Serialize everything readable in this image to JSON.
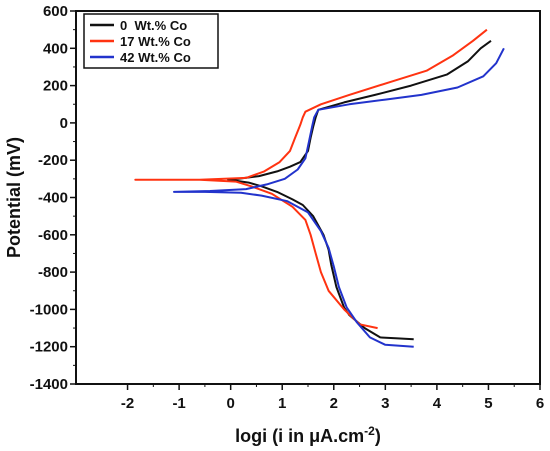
{
  "chart_data": {
    "type": "line",
    "xlabel_main": "logi (i in μA.cm",
    "xlabel_sup": "-2",
    "xlabel_close": ")",
    "ylabel": "Potential (mV)",
    "xlim": [
      -3,
      6
    ],
    "ylim": [
      -1400,
      600
    ],
    "xticks": [
      "-2",
      "-1",
      "0",
      "1",
      "2",
      "3",
      "4",
      "5",
      "6"
    ],
    "yticks": [
      "-1400",
      "-1200",
      "-1000",
      "-800",
      "-600",
      "-400",
      "-200",
      "0",
      "200",
      "400",
      "600"
    ],
    "legend_position": "top-left",
    "series": [
      {
        "name": "0  Wt.% Co",
        "color": "#111111",
        "points": [
          [
            3.55,
            -1160
          ],
          [
            3.2,
            -1155
          ],
          [
            2.9,
            -1150
          ],
          [
            2.6,
            -1100
          ],
          [
            2.3,
            -1030
          ],
          [
            2.2,
            -990
          ],
          [
            2.05,
            -880
          ],
          [
            1.95,
            -760
          ],
          [
            1.9,
            -680
          ],
          [
            1.8,
            -600
          ],
          [
            1.6,
            -500
          ],
          [
            1.4,
            -440
          ],
          [
            1.2,
            -410
          ],
          [
            0.9,
            -370
          ],
          [
            0.6,
            -340
          ],
          [
            0.35,
            -320
          ],
          [
            0.1,
            -310
          ],
          [
            -0.05,
            -305
          ],
          [
            0.15,
            -300
          ],
          [
            0.55,
            -285
          ],
          [
            0.9,
            -260
          ],
          [
            1.15,
            -235
          ],
          [
            1.35,
            -210
          ],
          [
            1.5,
            -150
          ],
          [
            1.55,
            -80
          ],
          [
            1.6,
            -20
          ],
          [
            1.65,
            30
          ],
          [
            1.7,
            70
          ],
          [
            2.2,
            110
          ],
          [
            2.8,
            150
          ],
          [
            3.5,
            200
          ],
          [
            4.2,
            260
          ],
          [
            4.6,
            330
          ],
          [
            4.85,
            400
          ],
          [
            5.05,
            440
          ]
        ]
      },
      {
        "name": "17 Wt.% Co",
        "color": "#ff3311",
        "points": [
          [
            2.85,
            -1100
          ],
          [
            2.5,
            -1080
          ],
          [
            2.2,
            -1000
          ],
          [
            1.9,
            -900
          ],
          [
            1.75,
            -800
          ],
          [
            1.65,
            -700
          ],
          [
            1.55,
            -600
          ],
          [
            1.45,
            -520
          ],
          [
            1.2,
            -450
          ],
          [
            0.8,
            -380
          ],
          [
            0.4,
            -340
          ],
          [
            0.1,
            -315
          ],
          [
            -0.6,
            -305
          ],
          [
            -1.85,
            -305
          ],
          [
            -0.6,
            -305
          ],
          [
            0.3,
            -295
          ],
          [
            0.65,
            -260
          ],
          [
            0.95,
            -210
          ],
          [
            1.15,
            -150
          ],
          [
            1.25,
            -80
          ],
          [
            1.35,
            -10
          ],
          [
            1.4,
            30
          ],
          [
            1.45,
            60
          ],
          [
            1.75,
            100
          ],
          [
            2.3,
            150
          ],
          [
            3.1,
            220
          ],
          [
            3.8,
            280
          ],
          [
            4.3,
            360
          ],
          [
            4.7,
            440
          ],
          [
            4.97,
            500
          ]
        ]
      },
      {
        "name": "42 Wt.% Co",
        "color": "#2233cc",
        "points": [
          [
            3.55,
            -1200
          ],
          [
            3.0,
            -1190
          ],
          [
            2.7,
            -1150
          ],
          [
            2.45,
            -1070
          ],
          [
            2.25,
            -990
          ],
          [
            2.1,
            -880
          ],
          [
            2.0,
            -770
          ],
          [
            1.9,
            -670
          ],
          [
            1.75,
            -580
          ],
          [
            1.5,
            -480
          ],
          [
            1.1,
            -420
          ],
          [
            0.6,
            -390
          ],
          [
            0.2,
            -375
          ],
          [
            -0.5,
            -370
          ],
          [
            -1.1,
            -370
          ],
          [
            -0.4,
            -365
          ],
          [
            0.3,
            -355
          ],
          [
            0.7,
            -330
          ],
          [
            1.05,
            -300
          ],
          [
            1.3,
            -250
          ],
          [
            1.45,
            -190
          ],
          [
            1.52,
            -100
          ],
          [
            1.58,
            -20
          ],
          [
            1.62,
            30
          ],
          [
            1.7,
            70
          ],
          [
            2.3,
            100
          ],
          [
            3.0,
            125
          ],
          [
            3.7,
            150
          ],
          [
            4.4,
            190
          ],
          [
            4.9,
            250
          ],
          [
            5.15,
            320
          ],
          [
            5.3,
            400
          ]
        ]
      }
    ]
  }
}
